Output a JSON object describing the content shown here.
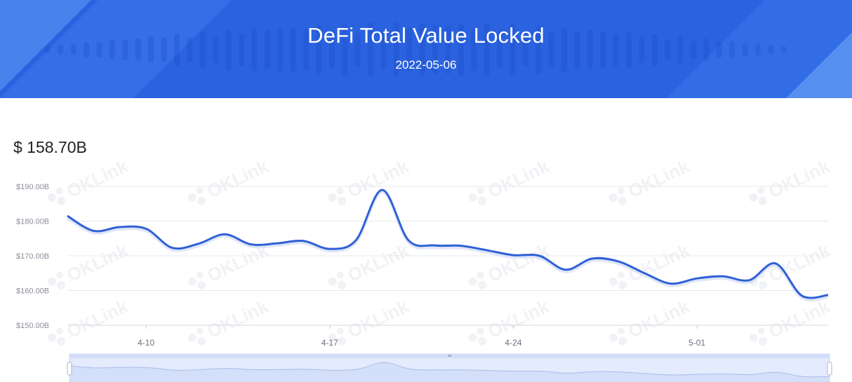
{
  "header": {
    "title": "DeFi Total Value Locked",
    "date": "2022-05-06"
  },
  "current_value": "$ 158.70B",
  "watermark_text": "OKLink",
  "colors": {
    "banner": "#2a62e0",
    "line": "#2f61d6",
    "grid": "#e6e8ec",
    "slider_fill": "#e3ebfd"
  },
  "chart_data": {
    "type": "line",
    "title": "",
    "xlabel": "",
    "ylabel": "",
    "ylim": [
      150,
      190
    ],
    "y_ticks": [
      150,
      160,
      170,
      180,
      190
    ],
    "y_tick_labels": [
      "$150.00B",
      "$160.00B",
      "$170.00B",
      "$180.00B",
      "$190.00B"
    ],
    "x_tick_labels": [
      "4-10",
      "4-17",
      "4-24",
      "5-01"
    ],
    "x_tick_dates": [
      "2022-04-10",
      "2022-04-17",
      "2022-04-24",
      "2022-05-01"
    ],
    "grid": true,
    "legend": "none",
    "has_zoom_slider": true,
    "series": [
      {
        "dates": [
          "2022-04-07",
          "2022-04-08",
          "2022-04-09",
          "2022-04-10",
          "2022-04-11",
          "2022-04-12",
          "2022-04-13",
          "2022-04-14",
          "2022-04-15",
          "2022-04-16",
          "2022-04-17",
          "2022-04-18",
          "2022-04-19",
          "2022-04-20",
          "2022-04-21",
          "2022-04-22",
          "2022-04-23",
          "2022-04-24",
          "2022-04-25",
          "2022-04-26",
          "2022-04-27",
          "2022-04-28",
          "2022-04-29",
          "2022-04-30",
          "2022-05-01",
          "2022-05-02",
          "2022-05-03",
          "2022-05-04",
          "2022-05-05",
          "2022-05-06"
        ],
        "values": [
          181.5,
          177.2,
          178.3,
          177.8,
          172.3,
          173.5,
          176.2,
          173.3,
          173.6,
          174.3,
          172.0,
          174.5,
          189.0,
          174.5,
          173.0,
          172.9,
          171.6,
          170.2,
          170.0,
          166.0,
          169.2,
          168.4,
          165.0,
          162.0,
          163.5,
          164.1,
          163.0,
          167.8,
          158.5,
          158.7
        ]
      }
    ]
  }
}
